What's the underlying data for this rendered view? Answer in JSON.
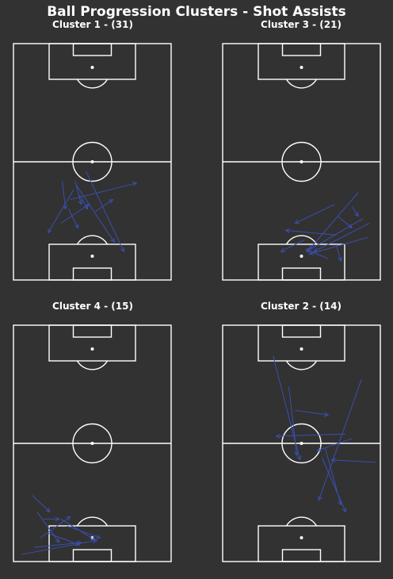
{
  "title": "Ball Progression Clusters - Shot Assists",
  "colors": {
    "background": "#323232",
    "pitch_lines": "#ffffff",
    "arrows": "#3a4fb0"
  },
  "chart_data": [
    {
      "type": "arrow-map",
      "title": "Cluster 1 - (31)",
      "arrows": [
        [
          0.31,
          0.58,
          0.33,
          0.7
        ],
        [
          0.39,
          0.58,
          0.43,
          0.68
        ],
        [
          0.36,
          0.66,
          0.78,
          0.59
        ],
        [
          0.46,
          0.54,
          0.7,
          0.88
        ],
        [
          0.38,
          0.62,
          0.22,
          0.8
        ],
        [
          0.42,
          0.64,
          0.47,
          0.7
        ],
        [
          0.52,
          0.71,
          0.63,
          0.66
        ],
        [
          0.3,
          0.76,
          0.48,
          0.68
        ],
        [
          0.4,
          0.6,
          0.64,
          0.84
        ],
        [
          0.35,
          0.7,
          0.41,
          0.78
        ]
      ]
    },
    {
      "type": "arrow-map",
      "title": "Cluster 3 - (21)",
      "arrows": [
        [
          0.71,
          0.68,
          0.46,
          0.76
        ],
        [
          0.86,
          0.63,
          0.55,
          0.87
        ],
        [
          0.72,
          0.81,
          0.4,
          0.79
        ],
        [
          0.73,
          0.73,
          0.82,
          0.78
        ],
        [
          0.82,
          0.69,
          0.86,
          0.73
        ],
        [
          0.93,
          0.76,
          0.58,
          0.88
        ],
        [
          0.89,
          0.74,
          0.53,
          0.88
        ],
        [
          0.92,
          0.82,
          0.55,
          0.89
        ],
        [
          0.67,
          0.91,
          0.53,
          0.87
        ],
        [
          0.52,
          0.83,
          0.37,
          0.88
        ],
        [
          0.72,
          0.85,
          0.75,
          0.92
        ]
      ]
    },
    {
      "type": "arrow-map",
      "title": "Cluster 4 - (15)",
      "arrows": [
        [
          0.12,
          0.72,
          0.23,
          0.79
        ],
        [
          0.15,
          0.79,
          0.29,
          0.92
        ],
        [
          0.19,
          0.82,
          0.29,
          0.82
        ],
        [
          0.17,
          0.9,
          0.36,
          0.81
        ],
        [
          0.3,
          0.82,
          0.52,
          0.91
        ],
        [
          0.05,
          0.97,
          0.53,
          0.91
        ],
        [
          0.13,
          0.94,
          0.43,
          0.92
        ],
        [
          0.22,
          0.88,
          0.42,
          0.93
        ],
        [
          0.34,
          0.85,
          0.55,
          0.9
        ]
      ]
    },
    {
      "type": "arrow-map",
      "title": "Cluster 2 - (14)",
      "arrows": [
        [
          0.32,
          0.13,
          0.49,
          0.57
        ],
        [
          0.42,
          0.26,
          0.47,
          0.55
        ],
        [
          0.46,
          0.36,
          0.67,
          0.38
        ],
        [
          0.78,
          0.46,
          0.34,
          0.47
        ],
        [
          0.82,
          0.48,
          0.6,
          0.53
        ],
        [
          0.88,
          0.23,
          0.61,
          0.74
        ],
        [
          0.65,
          0.52,
          0.75,
          0.76
        ],
        [
          0.63,
          0.56,
          0.78,
          0.79
        ],
        [
          0.97,
          0.58,
          0.69,
          0.57
        ]
      ]
    }
  ]
}
